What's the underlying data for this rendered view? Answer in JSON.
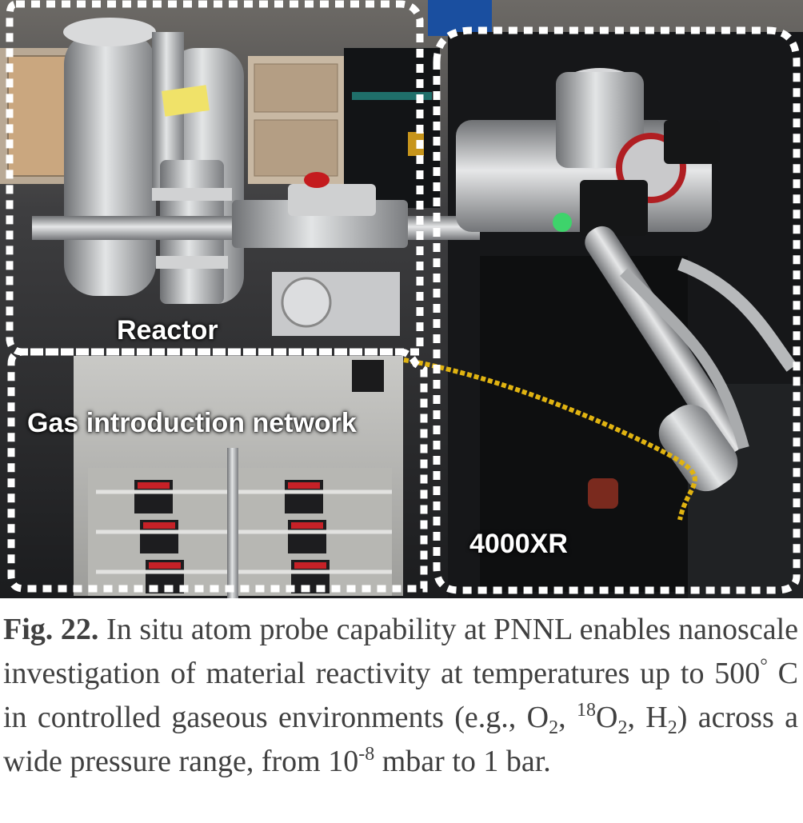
{
  "figure": {
    "regions": {
      "reactor": "Reactor",
      "gas": "Gas introduction network",
      "instrument": "4000XR"
    },
    "caption": {
      "label": "Fig. 22.",
      "t1": " In situ atom probe capability at PNNL enables nanoscale investigation of material reactivity at temperatures up to 500",
      "deg": "°",
      "t2": " C in controlled gaseous environments (e.g., O",
      "sub1": "2",
      "t3": ", ",
      "sup18": "18",
      "t4": "O",
      "sub2": "2",
      "t5": ", H",
      "sub3": "2",
      "t6": ") across a wide pressure range, from 10",
      "supexp": "-8",
      "t7": " mbar to 1 bar."
    }
  }
}
